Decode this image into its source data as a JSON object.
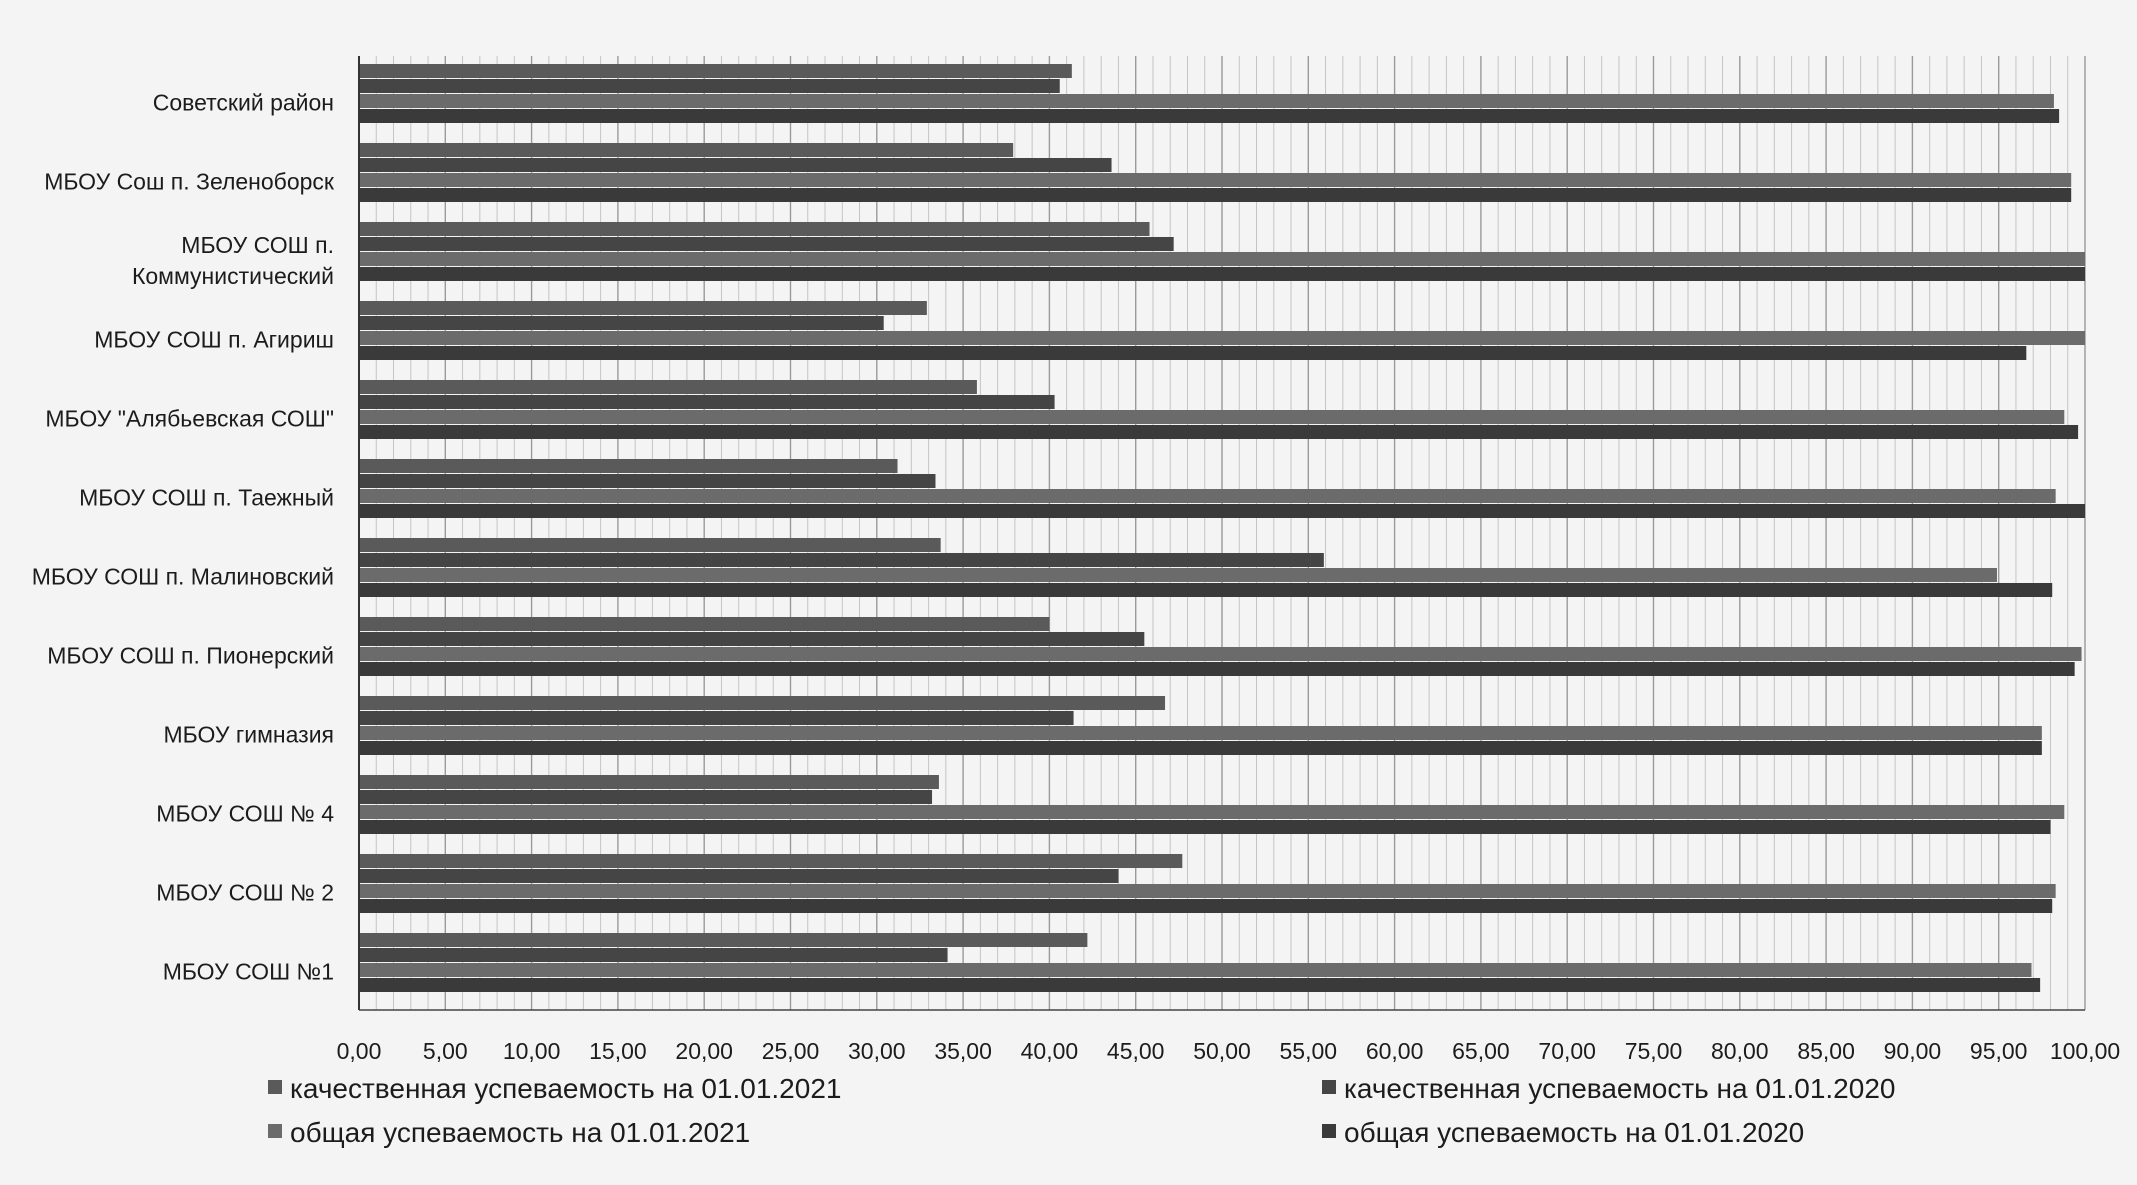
{
  "chart_data": {
    "type": "bar",
    "orientation": "horizontal",
    "categories": [
      "Советский район",
      "МБОУ Сош п. Зеленоборск",
      "МБОУ СОШ п. Коммунистический",
      "МБОУ СОШ п. Агириш",
      "МБОУ \"Алябьевская СОШ\"",
      "МБОУ СОШ п. Таежный",
      "МБОУ СОШ п. Малиновский",
      "МБОУ СОШ п. Пионерский",
      "МБОУ гимназия",
      "МБОУ СОШ № 4",
      "МБОУ СОШ № 2",
      "МБОУ СОШ №1"
    ],
    "category_lines": [
      [
        "Советский район"
      ],
      [
        "МБОУ Сош п. Зеленоборск"
      ],
      [
        "МБОУ СОШ п.",
        "Коммунистический"
      ],
      [
        "МБОУ СОШ п. Агириш"
      ],
      [
        "МБОУ \"Алябьевская СОШ\""
      ],
      [
        "МБОУ СОШ п. Таежный"
      ],
      [
        "МБОУ СОШ п. Малиновский"
      ],
      [
        "МБОУ СОШ п. Пионерский"
      ],
      [
        "МБОУ гимназия"
      ],
      [
        "МБОУ СОШ № 4"
      ],
      [
        "МБОУ СОШ № 2"
      ],
      [
        "МБОУ СОШ №1"
      ]
    ],
    "series": [
      {
        "name": "качественная успеваемость на 01.01.2021",
        "color": "#5a5a5a",
        "values": [
          41.3,
          37.9,
          45.8,
          32.9,
          35.8,
          31.2,
          33.7,
          40.0,
          46.7,
          33.6,
          47.7,
          42.2
        ]
      },
      {
        "name": "качественная успеваемость на 01.01.2020",
        "color": "#454545",
        "values": [
          40.6,
          43.6,
          47.2,
          30.4,
          40.3,
          33.4,
          55.9,
          45.5,
          41.4,
          33.2,
          44.0,
          34.1
        ]
      },
      {
        "name": "общая успеваемость на 01.01.2021",
        "color": "#6b6b6b",
        "values": [
          98.2,
          99.2,
          100.0,
          100.0,
          98.8,
          98.3,
          94.9,
          99.8,
          97.5,
          98.8,
          98.3,
          96.9
        ]
      },
      {
        "name": "общая успеваемость на 01.01.2020",
        "color": "#3a3a3a",
        "values": [
          98.5,
          99.2,
          100.0,
          96.6,
          99.6,
          100.0,
          98.1,
          99.4,
          97.5,
          98.0,
          98.1,
          97.4
        ]
      }
    ],
    "x_ticks": [
      "0,00",
      "5,00",
      "10,00",
      "15,00",
      "20,00",
      "25,00",
      "30,00",
      "35,00",
      "40,00",
      "45,00",
      "50,00",
      "55,00",
      "60,00",
      "65,00",
      "70,00",
      "75,00",
      "80,00",
      "85,00",
      "90,00",
      "95,00",
      "100,00"
    ],
    "xlim": [
      0,
      100
    ],
    "x_tick_step": 5,
    "x_minor_step": 1,
    "grid": true,
    "legend_position": "bottom",
    "title": "",
    "xlabel": "",
    "ylabel": ""
  }
}
